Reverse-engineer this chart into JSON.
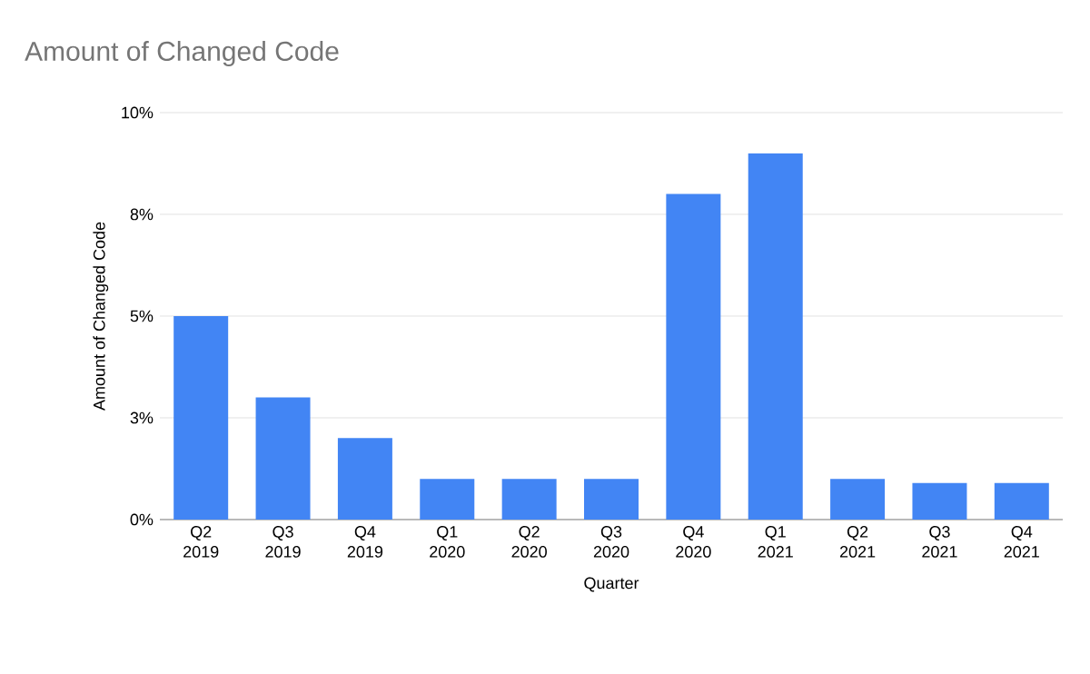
{
  "chart_data": {
    "type": "bar",
    "title": "Amount of Changed Code",
    "xlabel": "Quarter",
    "ylabel": "Amount of Changed Code",
    "categories": [
      "Q2 2019",
      "Q3 2019",
      "Q4 2019",
      "Q1 2020",
      "Q2 2020",
      "Q3 2020",
      "Q4 2020",
      "Q1 2021",
      "Q2 2021",
      "Q3 2021",
      "Q4 2021"
    ],
    "values": [
      5.0,
      3.0,
      2.0,
      1.0,
      1.0,
      1.0,
      8.0,
      9.0,
      1.0,
      0.9,
      0.9
    ],
    "color": "#4285f4",
    "ylim": [
      0,
      10
    ],
    "yticks": [
      {
        "value": 0,
        "label": "0%"
      },
      {
        "value": 2.5,
        "label": "3%"
      },
      {
        "value": 5,
        "label": "5%"
      },
      {
        "value": 7.5,
        "label": "8%"
      },
      {
        "value": 10,
        "label": "10%"
      }
    ],
    "grid": "y"
  }
}
